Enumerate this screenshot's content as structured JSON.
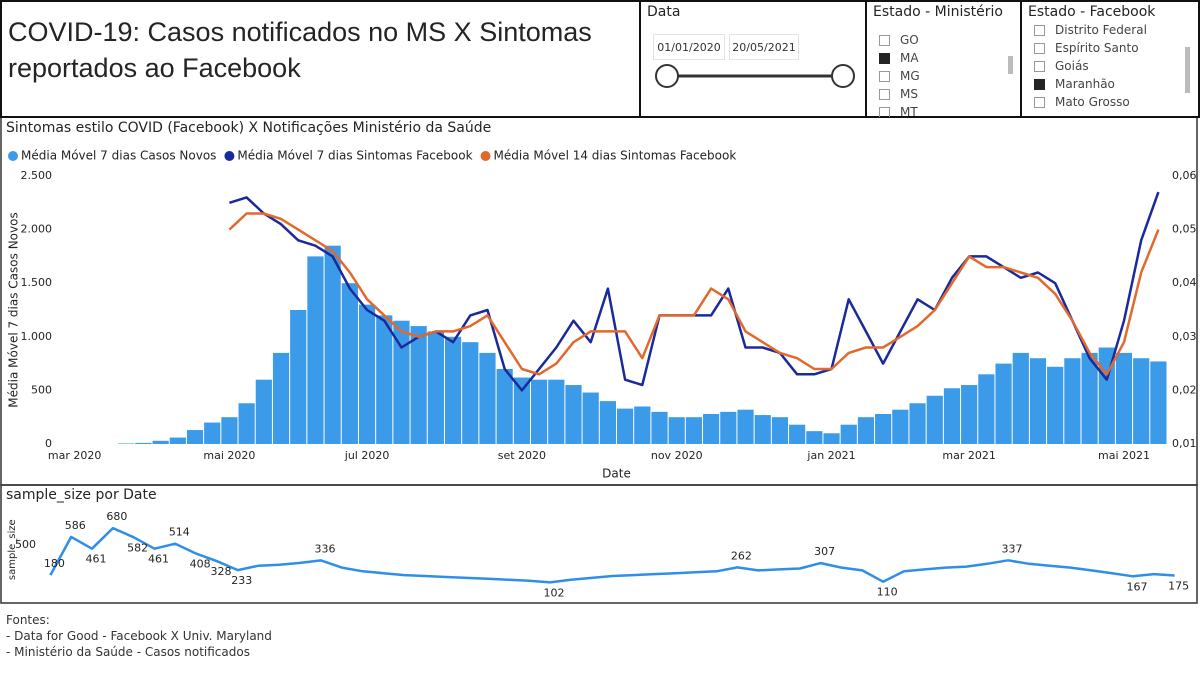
{
  "header": {
    "title": "COVID-19: Casos notificados no MS X Sintomas reportados ao Facebook"
  },
  "filters": {
    "date": {
      "title": "Data",
      "start": "01/01/2020",
      "end": "20/05/2021"
    },
    "ministerio": {
      "title": "Estado - Ministério",
      "items": [
        {
          "label": "GO",
          "checked": false
        },
        {
          "label": "MA",
          "checked": true
        },
        {
          "label": "MG",
          "checked": false
        },
        {
          "label": "MS",
          "checked": false
        },
        {
          "label": "MT",
          "checked": false
        }
      ]
    },
    "facebook": {
      "title": "Estado - Facebook",
      "items": [
        {
          "label": "Distrito Federal",
          "checked": false
        },
        {
          "label": "Espírito Santo",
          "checked": false
        },
        {
          "label": "Goiás",
          "checked": false
        },
        {
          "label": "Maranhão",
          "checked": true
        },
        {
          "label": "Mato Grosso",
          "checked": false
        }
      ]
    }
  },
  "chart_data": [
    {
      "type": "combo",
      "title": "Sintomas estilo COVID (Facebook) X Notificações Ministério da Saúde",
      "xlabel": "Date",
      "ylabel": "Média Móvel 7 dias Casos Novos",
      "categories": [
        "mar 2020",
        null,
        null,
        null,
        null,
        null,
        null,
        null,
        null,
        "mai 2020",
        null,
        null,
        null,
        null,
        null,
        null,
        null,
        "jul 2020",
        null,
        null,
        null,
        null,
        null,
        null,
        null,
        null,
        "set 2020",
        null,
        null,
        null,
        null,
        null,
        null,
        null,
        null,
        "nov 2020",
        null,
        null,
        null,
        null,
        null,
        null,
        null,
        null,
        "jan 2021",
        null,
        null,
        null,
        null,
        null,
        null,
        null,
        "mar 2021",
        null,
        null,
        null,
        null,
        null,
        null,
        null,
        null,
        "mai 2021",
        null,
        null
      ],
      "ylim": [
        0,
        2500
      ],
      "yticks": [
        0,
        500,
        {
          "value": 1000,
          "label": "1.000"
        },
        {
          "value": 1500,
          "label": "1.500"
        },
        {
          "value": 2000,
          "label": "2.000"
        },
        {
          "value": 2500,
          "label": "2.500"
        }
      ],
      "y2lim": [
        0.01,
        0.06
      ],
      "y2ticks": [
        {
          "value": 0.01,
          "label": "0,01"
        },
        {
          "value": 0.02,
          "label": "0,02"
        },
        {
          "value": 0.03,
          "label": "0,03"
        },
        {
          "value": 0.04,
          "label": "0,04"
        },
        {
          "value": 0.05,
          "label": "0,05"
        },
        {
          "value": 0.06,
          "label": "0,06"
        }
      ],
      "grid": false,
      "series": [
        {
          "name": "Média Móvel 7 dias Casos Novos",
          "type": "bar",
          "color": "#3b9be9",
          "values": [
            0,
            0,
            0,
            5,
            10,
            30,
            60,
            130,
            200,
            250,
            380,
            600,
            850,
            1250,
            1750,
            1850,
            1500,
            1300,
            1200,
            1150,
            1100,
            1050,
            1000,
            950,
            850,
            700,
            620,
            600,
            600,
            550,
            480,
            400,
            330,
            350,
            300,
            250,
            250,
            280,
            300,
            320,
            270,
            250,
            180,
            120,
            100,
            180,
            250,
            280,
            320,
            380,
            450,
            520,
            550,
            650,
            750,
            850,
            800,
            720,
            800,
            850,
            900,
            850,
            800,
            770
          ]
        },
        {
          "name": "Média Móvel 7 dias Sintomas Facebook",
          "type": "line",
          "axis": "y2",
          "color": "#1b2a9b",
          "values": [
            null,
            null,
            null,
            null,
            null,
            null,
            null,
            null,
            null,
            0.055,
            0.056,
            0.053,
            0.051,
            0.048,
            0.047,
            0.045,
            0.039,
            0.035,
            0.033,
            0.028,
            0.03,
            0.031,
            0.029,
            0.034,
            0.035,
            0.024,
            0.02,
            0.024,
            0.028,
            0.033,
            0.029,
            0.039,
            0.022,
            0.021,
            0.034,
            0.034,
            0.034,
            0.034,
            0.039,
            0.028,
            0.028,
            0.027,
            0.023,
            0.023,
            0.024,
            0.037,
            0.031,
            0.025,
            0.031,
            0.037,
            0.035,
            0.041,
            0.045,
            0.045,
            0.043,
            0.041,
            0.042,
            0.04,
            0.033,
            0.026,
            0.022,
            0.033,
            0.048,
            0.057
          ]
        },
        {
          "name": "Média Móvel 14 dias Sintomas Facebook",
          "type": "line",
          "axis": "y2",
          "color": "#e2692e",
          "values": [
            null,
            null,
            null,
            null,
            null,
            null,
            null,
            null,
            null,
            0.05,
            0.053,
            0.053,
            0.052,
            0.05,
            0.048,
            0.046,
            0.042,
            0.037,
            0.034,
            0.031,
            0.03,
            0.031,
            0.031,
            0.032,
            0.034,
            0.029,
            0.024,
            0.023,
            0.025,
            0.029,
            0.031,
            0.031,
            0.031,
            0.026,
            0.034,
            0.034,
            0.034,
            0.039,
            0.037,
            0.031,
            0.029,
            0.027,
            0.026,
            0.024,
            0.024,
            0.027,
            0.028,
            0.028,
            0.03,
            0.032,
            0.035,
            0.04,
            0.045,
            0.043,
            0.043,
            0.042,
            0.041,
            0.038,
            0.033,
            0.027,
            0.023,
            0.029,
            0.042,
            0.05
          ]
        }
      ]
    },
    {
      "type": "line",
      "title": "sample_size por Date",
      "ylabel": "sample_size",
      "color": "#2f8fe8",
      "ylim": [
        0,
        900
      ],
      "yticks": [
        500
      ],
      "values": [
        180,
        586,
        461,
        680,
        582,
        461,
        514,
        408,
        328,
        233,
        280,
        290,
        310,
        336,
        260,
        220,
        200,
        180,
        170,
        160,
        150,
        140,
        130,
        120,
        102,
        130,
        150,
        170,
        180,
        190,
        200,
        210,
        220,
        262,
        230,
        240,
        250,
        307,
        260,
        230,
        110,
        220,
        240,
        260,
        270,
        300,
        337,
        300,
        280,
        260,
        230,
        200,
        167,
        190,
        175
      ],
      "value_labels": [
        "180",
        "586",
        "461",
        "680",
        "582",
        "461",
        "514",
        "408",
        "328",
        "233",
        null,
        null,
        null,
        "336",
        null,
        null,
        null,
        null,
        null,
        null,
        null,
        null,
        null,
        null,
        "102",
        null,
        null,
        null,
        null,
        null,
        null,
        null,
        null,
        "262",
        null,
        null,
        null,
        "307",
        null,
        null,
        "110",
        null,
        null,
        null,
        null,
        null,
        "337",
        null,
        null,
        null,
        null,
        null,
        "167",
        null,
        "175"
      ]
    }
  ],
  "footer": {
    "lines": [
      "Fontes:",
      "- Data for Good - Facebook X Univ. Maryland",
      "- Ministério da Saúde - Casos notificados"
    ]
  }
}
